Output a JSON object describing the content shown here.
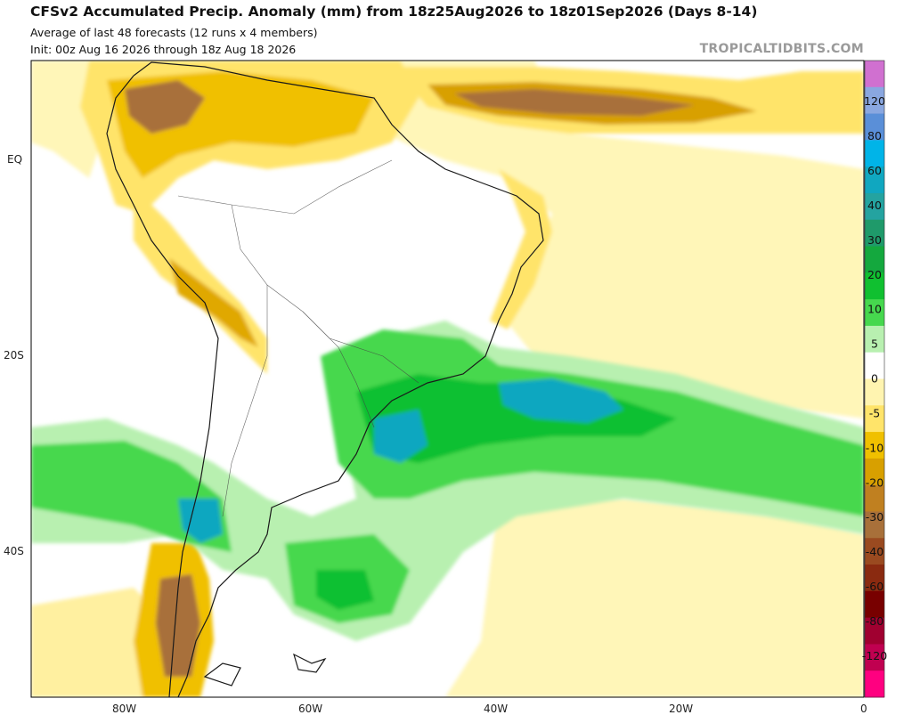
{
  "header": {
    "title": "CFSv2 Accumulated Precip. Anomaly (mm) from 18z25Aug2026 to 18z01Sep2026 (Days 8-14)",
    "subtitle": "Average of last 48 forecasts (12 runs x 4 members)",
    "init": "Init: 00z Aug 16 2026 through 18z Aug 18 2026",
    "brand": "TROPICALTIDBITS.COM"
  },
  "axes": {
    "lat_labels": [
      "EQ",
      "20S",
      "40S"
    ],
    "lon_labels": [
      "80W",
      "60W",
      "40W",
      "20W",
      "0"
    ]
  },
  "colorbar": {
    "labels": [
      "120",
      "80",
      "60",
      "40",
      "30",
      "20",
      "10",
      "5",
      "0",
      "-5",
      "-10",
      "-20",
      "-30",
      "-40",
      "-60",
      "-80",
      "-120"
    ],
    "colors": [
      "#d070d0",
      "#8aa7e0",
      "#5a8fd8",
      "#00b4e8",
      "#10a7c0",
      "#24a3a0",
      "#1f9a6a",
      "#14a83e",
      "#10c030",
      "#46d84e",
      "#b8f0b0",
      "#ffffff",
      "#fff4b0",
      "#ffe46a",
      "#f0c000",
      "#d8a000",
      "#c08020",
      "#a8703a",
      "#9a4a20",
      "#8a2a10",
      "#780000",
      "#a00030",
      "#c00050",
      "#ff0080"
    ]
  }
}
